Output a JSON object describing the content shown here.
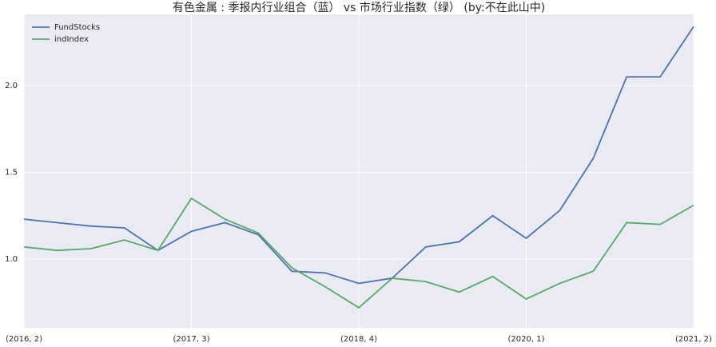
{
  "chart_data": {
    "type": "line",
    "title": "有色金属 : 季报内行业组合（蓝） vs 市场行业指数（绿） (by:不在此山中)",
    "categories": [
      "(2016, 2)",
      null,
      null,
      null,
      null,
      "(2017, 3)",
      null,
      null,
      null,
      null,
      "(2018, 4)",
      null,
      null,
      null,
      null,
      "(2020, 1)",
      null,
      null,
      null,
      null,
      "(2021, 2)"
    ],
    "series": [
      {
        "name": "FundStocks",
        "color": "#4c72b0",
        "values": [
          1.23,
          1.21,
          1.19,
          1.18,
          1.05,
          1.16,
          1.21,
          1.14,
          0.93,
          0.92,
          0.86,
          0.89,
          1.07,
          1.1,
          1.25,
          1.12,
          1.28,
          1.58,
          2.05,
          2.05,
          2.34
        ]
      },
      {
        "name": "indIndex",
        "color": "#55a868",
        "values": [
          1.07,
          1.05,
          1.06,
          1.11,
          1.05,
          1.35,
          1.23,
          1.15,
          0.95,
          0.84,
          0.72,
          0.89,
          0.87,
          0.81,
          0.9,
          0.77,
          0.86,
          0.93,
          1.21,
          1.2,
          1.31
        ]
      }
    ],
    "ylim": [
      0.604,
      2.41
    ],
    "yticks": [
      {
        "value": 1,
        "label": "1.0"
      },
      {
        "value": 1.5,
        "label": "1.5"
      },
      {
        "value": 2,
        "label": "2.0"
      }
    ],
    "grid": true,
    "legend": "upper-left"
  }
}
